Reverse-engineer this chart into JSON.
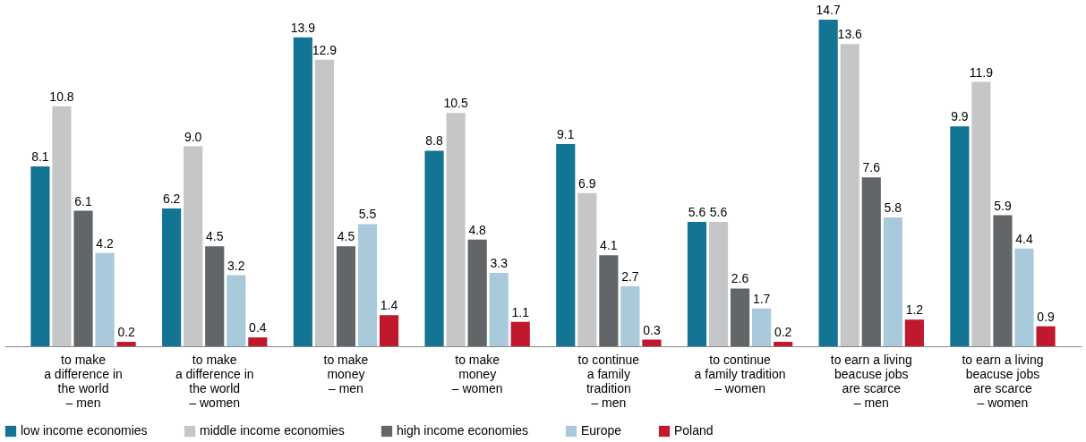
{
  "chart_data": {
    "type": "bar",
    "categories": [
      "to make\na difference in\nthe world\n– men",
      "to make\na difference in\nthe world\n– women",
      "to make\nmoney\n– men",
      "to make\nmoney\n– women",
      "to continue\na family\ntradition\n– men",
      "to continue\na family tradition\n– women",
      "to earn a living\nbeacuse jobs\nare scarce\n– men",
      "to earn a living\nbeacuse jobs\nare scarce\n– women"
    ],
    "series": [
      {
        "name": "low income economies",
        "color": "#137493",
        "values": [
          8.1,
          6.2,
          13.9,
          8.8,
          9.1,
          5.6,
          14.7,
          9.9
        ],
        "value_labels": [
          "8.1",
          "6.2",
          "13.9",
          "8.8",
          "9.1",
          "5.6",
          "14.7",
          "9.9"
        ]
      },
      {
        "name": "middle income economies",
        "color": "#c4c6c8",
        "values": [
          10.8,
          9.0,
          12.9,
          10.5,
          6.9,
          5.6,
          13.6,
          11.9
        ],
        "value_labels": [
          "10.8",
          "9.0",
          "12.9",
          "10.5",
          "6.9",
          "5.6",
          "13.6",
          "11.9"
        ]
      },
      {
        "name": "high income economies",
        "color": "#636668",
        "values": [
          6.1,
          4.5,
          4.5,
          4.8,
          4.1,
          2.6,
          7.6,
          5.9
        ],
        "value_labels": [
          "6.1",
          "4.5",
          "4.5",
          "4.8",
          "4.1",
          "2.6",
          "7.6",
          "5.9"
        ]
      },
      {
        "name": "Europe",
        "color": "#a8cadb",
        "values": [
          4.2,
          3.2,
          5.5,
          3.3,
          2.7,
          1.7,
          5.8,
          4.4
        ],
        "value_labels": [
          "4.2",
          "3.2",
          "5.5",
          "3.3",
          "2.7",
          "1.7",
          "5.8",
          "4.4"
        ]
      },
      {
        "name": "Poland",
        "color": "#c0182c",
        "values": [
          0.2,
          0.4,
          1.4,
          1.1,
          0.3,
          0.2,
          1.2,
          0.9
        ],
        "value_labels": [
          "0.2",
          "0.4",
          "1.4",
          "1.1",
          "0.3",
          "0.2",
          "1.2",
          "0.9"
        ]
      }
    ],
    "legend": "bottom",
    "grid": false
  }
}
